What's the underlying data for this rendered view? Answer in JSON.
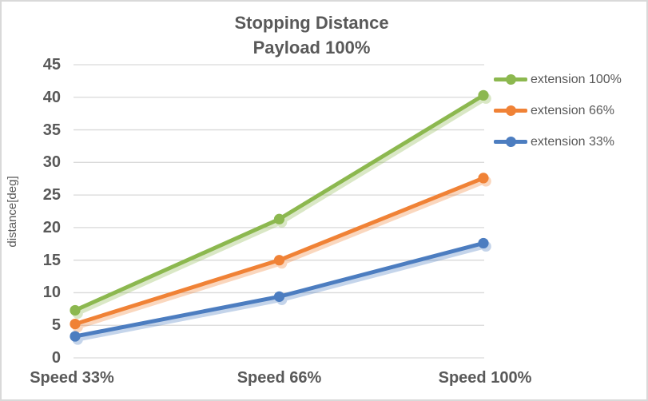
{
  "window": {
    "background": "#ffffff",
    "border_color": "#d9d9d9"
  },
  "chart_data": {
    "type": "line",
    "title": "Stopping Distance",
    "subtitle": "Payload 100%",
    "ylabel": "distance[deg]",
    "xlabel": "",
    "categories": [
      "Speed 33%",
      "Speed 66%",
      "Speed 100%"
    ],
    "series": [
      {
        "name": "extension 100%",
        "color": "#8cb84f",
        "values": [
          7.3,
          21.3,
          40.3
        ]
      },
      {
        "name": "extension 66%",
        "color": "#f08236",
        "values": [
          5.2,
          15.0,
          27.6
        ]
      },
      {
        "name": "extension 33%",
        "color": "#4c7dc0",
        "values": [
          3.3,
          9.4,
          17.6
        ]
      }
    ],
    "ylim": [
      0,
      45
    ],
    "ytick_step": 5,
    "grid": true,
    "grid_color": "#d9d9d9",
    "text_color": "#595959",
    "legend_position": "right",
    "marker": "circle",
    "line_shadow": true
  }
}
